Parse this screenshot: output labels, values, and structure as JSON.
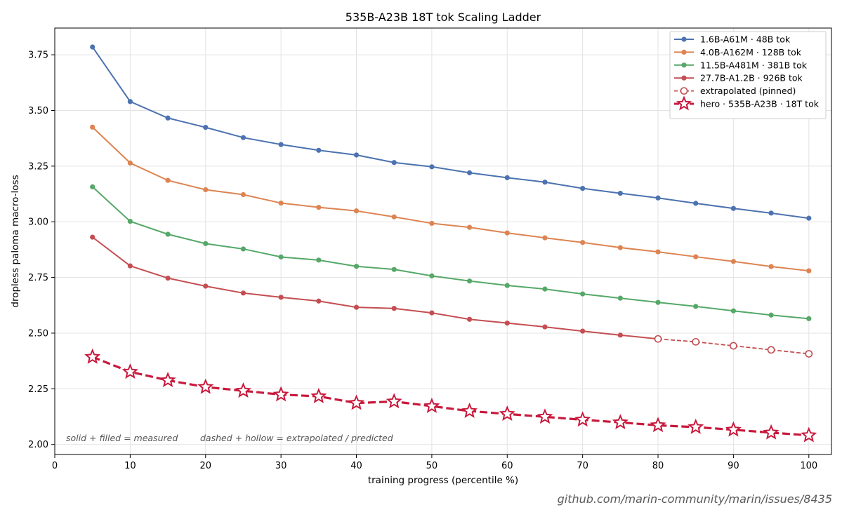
{
  "chart_data": {
    "type": "line",
    "title": "535B-A23B 18T tok Scaling Ladder",
    "xlabel": "training progress (percentile %)",
    "ylabel": "dropless paloma macro-loss",
    "xlim": [
      0,
      103
    ],
    "ylim": [
      1.955,
      3.87
    ],
    "xticks": [
      0,
      10,
      20,
      30,
      40,
      50,
      60,
      70,
      80,
      90,
      100
    ],
    "yticks": [
      2.0,
      2.25,
      2.5,
      2.75,
      3.0,
      3.25,
      3.5,
      3.75
    ],
    "ytick_labels": [
      "2.00",
      "2.25",
      "2.50",
      "2.75",
      "3.00",
      "3.25",
      "3.50",
      "3.75"
    ],
    "grid": true,
    "legend_position": "top-right",
    "x": [
      5,
      10,
      15,
      20,
      25,
      30,
      35,
      40,
      45,
      50,
      55,
      60,
      65,
      70,
      75,
      80,
      85,
      90,
      95,
      100
    ],
    "series": [
      {
        "name": "1.6B-A61M · 48B tok",
        "color": "#4c72b0",
        "style": "solid-filled",
        "values": [
          3.785,
          3.54,
          3.466,
          3.424,
          3.378,
          3.347,
          3.321,
          3.3,
          3.266,
          3.247,
          3.22,
          3.198,
          3.178,
          3.15,
          3.128,
          3.107,
          3.083,
          3.06,
          3.039,
          3.016
        ]
      },
      {
        "name": "4.0B-A162M · 128B tok",
        "color": "#dd8452",
        "style": "solid-filled",
        "values": [
          3.425,
          3.264,
          3.186,
          3.144,
          3.122,
          3.084,
          3.065,
          3.049,
          3.022,
          2.993,
          2.975,
          2.95,
          2.928,
          2.907,
          2.884,
          2.865,
          2.843,
          2.822,
          2.799,
          2.78
        ]
      },
      {
        "name": "11.5B-A481M · 381B tok",
        "color": "#55a868",
        "style": "solid-filled",
        "values": [
          3.157,
          3.002,
          2.944,
          2.902,
          2.878,
          2.842,
          2.828,
          2.8,
          2.786,
          2.757,
          2.734,
          2.714,
          2.698,
          2.676,
          2.657,
          2.638,
          2.62,
          2.6,
          2.581,
          2.565
        ]
      },
      {
        "name": "27.7B-A1.2B · 926B tok",
        "color": "#c44e52",
        "style": "solid-filled",
        "values": [
          2.931,
          2.802,
          2.747,
          2.711,
          2.68,
          2.661,
          2.644,
          2.616,
          2.611,
          2.591,
          2.562,
          2.545,
          2.528,
          2.509,
          2.491,
          2.474,
          null,
          null,
          null,
          null
        ]
      },
      {
        "name": "extrapolated (pinned)",
        "color": "#c44e52",
        "style": "dashed-hollow",
        "values": [
          null,
          null,
          null,
          null,
          null,
          null,
          null,
          null,
          null,
          null,
          null,
          null,
          null,
          null,
          null,
          2.474,
          2.461,
          2.443,
          2.425,
          2.407
        ]
      },
      {
        "name": "hero · 535B-A23B · 18T tok",
        "color": "#c8193c",
        "style": "dashed-star",
        "values": [
          2.393,
          2.326,
          2.288,
          2.258,
          2.241,
          2.224,
          2.216,
          2.186,
          2.193,
          2.172,
          2.15,
          2.137,
          2.124,
          2.111,
          2.099,
          2.086,
          2.078,
          2.066,
          2.053,
          2.041
        ]
      }
    ],
    "annotations": [
      "solid + filled = measured",
      "dashed + hollow = extrapolated / predicted"
    ]
  },
  "source_url": "github.com/marin-community/marin/issues/8435"
}
